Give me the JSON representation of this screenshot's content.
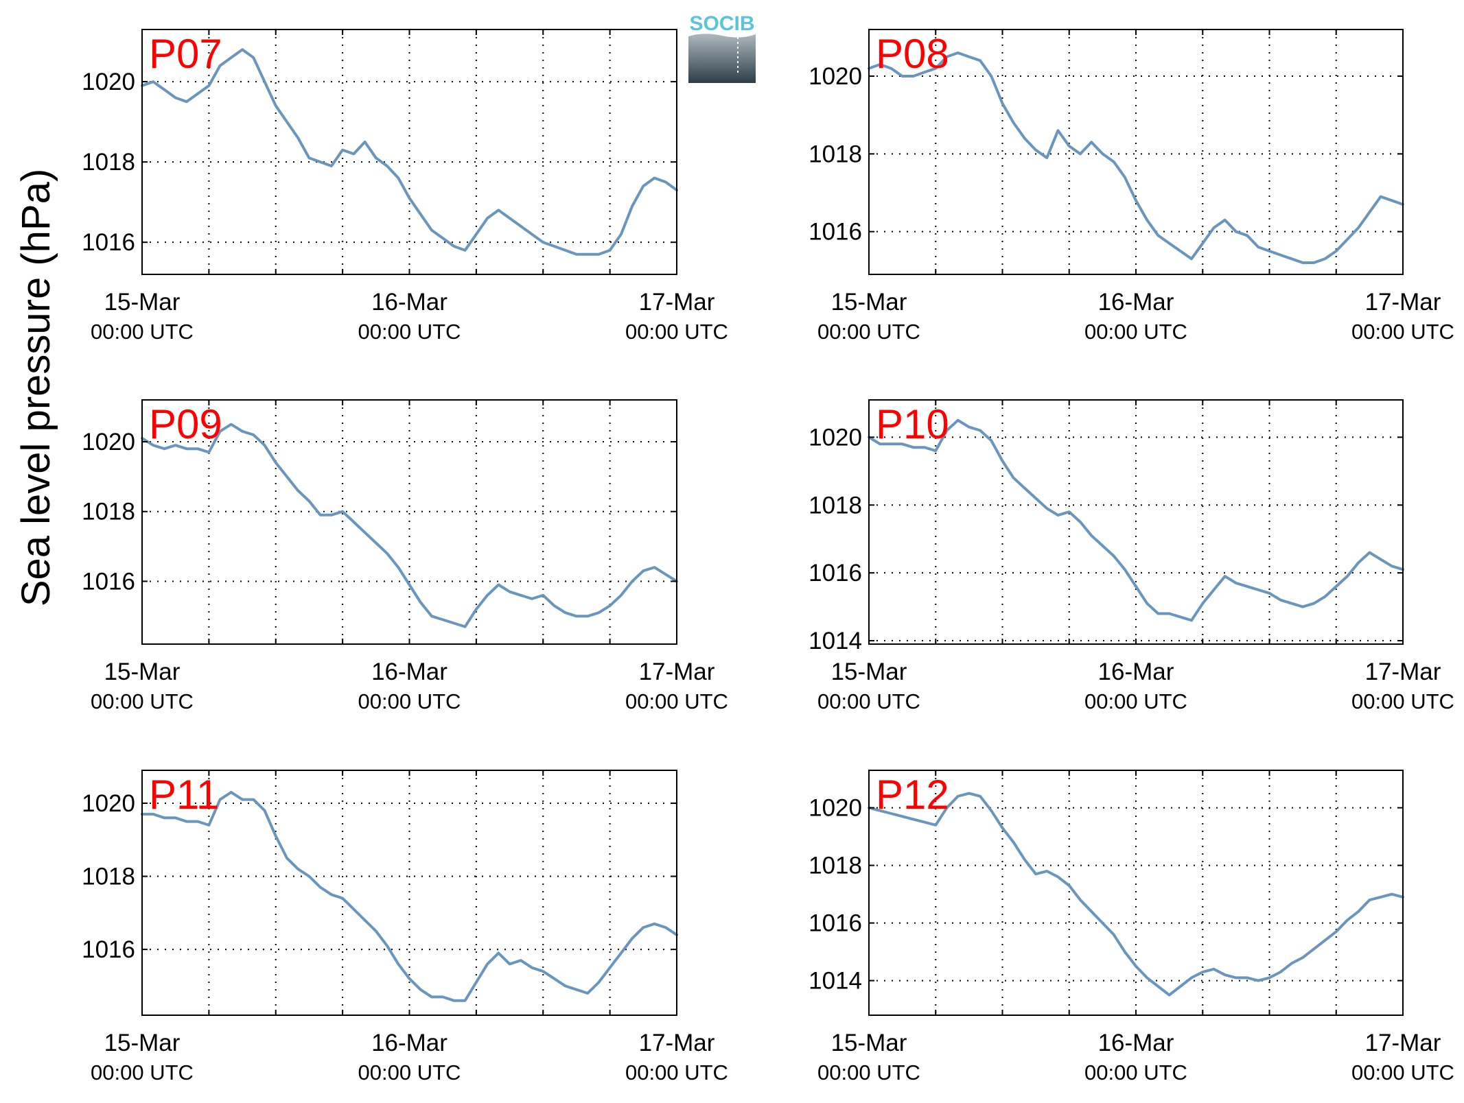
{
  "figure": {
    "ylabel": "Sea level pressure (hPa)",
    "logo_text": "SOCIB"
  },
  "colors": {
    "line": "#6a96bd",
    "title": "#ff0000",
    "axis": "#000000",
    "grid": "#000000",
    "logo_text": "#5bc4d6",
    "logo_top": "#aeb9bf",
    "logo_bottom": "#2d3e48"
  },
  "chart_data": [
    {
      "type": "line",
      "title": "P07",
      "ylabel": "Sea level pressure (hPa)",
      "xlim": [
        0,
        48
      ],
      "ylim": [
        1015.2,
        1021.3
      ],
      "yticks": [
        1016,
        1018,
        1020
      ],
      "grid": true,
      "x": [
        0,
        1,
        2,
        3,
        4,
        5,
        6,
        7,
        8,
        9,
        10,
        11,
        12,
        13,
        14,
        15,
        16,
        17,
        18,
        19,
        20,
        21,
        22,
        23,
        24,
        25,
        26,
        27,
        28,
        29,
        30,
        31,
        32,
        33,
        34,
        35,
        36,
        37,
        38,
        39,
        40,
        41,
        42,
        43,
        44,
        45,
        46,
        47,
        48
      ],
      "series": [
        {
          "values": [
            1019.9,
            1020.0,
            1019.8,
            1019.6,
            1019.5,
            1019.7,
            1019.9,
            1020.4,
            1020.6,
            1020.8,
            1020.6,
            1020.0,
            1019.4,
            1019.0,
            1018.6,
            1018.1,
            1018.0,
            1017.9,
            1018.3,
            1018.2,
            1018.5,
            1018.1,
            1017.9,
            1017.6,
            1017.1,
            1016.7,
            1016.3,
            1016.1,
            1015.9,
            1015.8,
            1016.2,
            1016.6,
            1016.8,
            1016.6,
            1016.4,
            1016.2,
            1016.0,
            1015.9,
            1015.8,
            1015.7,
            1015.7,
            1015.7,
            1015.8,
            1016.2,
            1016.9,
            1017.4,
            1017.6,
            1017.5,
            1017.3
          ]
        }
      ]
    },
    {
      "type": "line",
      "title": "P08",
      "ylabel": "Sea level pressure (hPa)",
      "xlim": [
        0,
        48
      ],
      "ylim": [
        1014.9,
        1021.2
      ],
      "yticks": [
        1016,
        1018,
        1020
      ],
      "grid": true,
      "x": [
        0,
        1,
        2,
        3,
        4,
        5,
        6,
        7,
        8,
        9,
        10,
        11,
        12,
        13,
        14,
        15,
        16,
        17,
        18,
        19,
        20,
        21,
        22,
        23,
        24,
        25,
        26,
        27,
        28,
        29,
        30,
        31,
        32,
        33,
        34,
        35,
        36,
        37,
        38,
        39,
        40,
        41,
        42,
        43,
        44,
        45,
        46,
        47,
        48
      ],
      "series": [
        {
          "values": [
            1020.2,
            1020.3,
            1020.2,
            1020.0,
            1020.0,
            1020.1,
            1020.2,
            1020.5,
            1020.6,
            1020.5,
            1020.4,
            1020.0,
            1019.3,
            1018.8,
            1018.4,
            1018.1,
            1017.9,
            1018.6,
            1018.2,
            1018.0,
            1018.3,
            1018.0,
            1017.8,
            1017.4,
            1016.8,
            1016.3,
            1015.9,
            1015.7,
            1015.5,
            1015.3,
            1015.7,
            1016.1,
            1016.3,
            1016.0,
            1015.9,
            1015.6,
            1015.5,
            1015.4,
            1015.3,
            1015.2,
            1015.2,
            1015.3,
            1015.5,
            1015.8,
            1016.1,
            1016.5,
            1016.9,
            1016.8,
            1016.7
          ]
        }
      ]
    },
    {
      "type": "line",
      "title": "P09",
      "ylabel": "Sea level pressure (hPa)",
      "xlim": [
        0,
        48
      ],
      "ylim": [
        1014.2,
        1021.2
      ],
      "yticks": [
        1016,
        1018,
        1020
      ],
      "grid": true,
      "x": [
        0,
        1,
        2,
        3,
        4,
        5,
        6,
        7,
        8,
        9,
        10,
        11,
        12,
        13,
        14,
        15,
        16,
        17,
        18,
        19,
        20,
        21,
        22,
        23,
        24,
        25,
        26,
        27,
        28,
        29,
        30,
        31,
        32,
        33,
        34,
        35,
        36,
        37,
        38,
        39,
        40,
        41,
        42,
        43,
        44,
        45,
        46,
        47,
        48
      ],
      "series": [
        {
          "values": [
            1020.1,
            1019.9,
            1019.8,
            1019.9,
            1019.8,
            1019.8,
            1019.7,
            1020.3,
            1020.5,
            1020.3,
            1020.2,
            1019.9,
            1019.4,
            1019.0,
            1018.6,
            1018.3,
            1017.9,
            1017.9,
            1018.0,
            1017.7,
            1017.4,
            1017.1,
            1016.8,
            1016.4,
            1015.9,
            1015.4,
            1015.0,
            1014.9,
            1014.8,
            1014.7,
            1015.2,
            1015.6,
            1015.9,
            1015.7,
            1015.6,
            1015.5,
            1015.6,
            1015.3,
            1015.1,
            1015.0,
            1015.0,
            1015.1,
            1015.3,
            1015.6,
            1016.0,
            1016.3,
            1016.4,
            1016.2,
            1016.0
          ]
        }
      ]
    },
    {
      "type": "line",
      "title": "P10",
      "ylabel": "Sea level pressure (hPa)",
      "xlim": [
        0,
        48
      ],
      "ylim": [
        1013.9,
        1021.1
      ],
      "yticks": [
        1014,
        1016,
        1018,
        1020
      ],
      "grid": true,
      "x": [
        0,
        1,
        2,
        3,
        4,
        5,
        6,
        7,
        8,
        9,
        10,
        11,
        12,
        13,
        14,
        15,
        16,
        17,
        18,
        19,
        20,
        21,
        22,
        23,
        24,
        25,
        26,
        27,
        28,
        29,
        30,
        31,
        32,
        33,
        34,
        35,
        36,
        37,
        38,
        39,
        40,
        41,
        42,
        43,
        44,
        45,
        46,
        47,
        48
      ],
      "series": [
        {
          "values": [
            1020.0,
            1019.8,
            1019.8,
            1019.8,
            1019.7,
            1019.7,
            1019.6,
            1020.2,
            1020.5,
            1020.3,
            1020.2,
            1019.9,
            1019.3,
            1018.8,
            1018.5,
            1018.2,
            1017.9,
            1017.7,
            1017.8,
            1017.5,
            1017.1,
            1016.8,
            1016.5,
            1016.1,
            1015.6,
            1015.1,
            1014.8,
            1014.8,
            1014.7,
            1014.6,
            1015.1,
            1015.5,
            1015.9,
            1015.7,
            1015.6,
            1015.5,
            1015.4,
            1015.2,
            1015.1,
            1015.0,
            1015.1,
            1015.3,
            1015.6,
            1015.9,
            1016.3,
            1016.6,
            1016.4,
            1016.2,
            1016.1
          ]
        }
      ]
    },
    {
      "type": "line",
      "title": "P11",
      "ylabel": "Sea level pressure (hPa)",
      "xlim": [
        0,
        48
      ],
      "ylim": [
        1014.2,
        1020.9
      ],
      "yticks": [
        1016,
        1018,
        1020
      ],
      "grid": true,
      "x": [
        0,
        1,
        2,
        3,
        4,
        5,
        6,
        7,
        8,
        9,
        10,
        11,
        12,
        13,
        14,
        15,
        16,
        17,
        18,
        19,
        20,
        21,
        22,
        23,
        24,
        25,
        26,
        27,
        28,
        29,
        30,
        31,
        32,
        33,
        34,
        35,
        36,
        37,
        38,
        39,
        40,
        41,
        42,
        43,
        44,
        45,
        46,
        47,
        48
      ],
      "series": [
        {
          "values": [
            1019.7,
            1019.7,
            1019.6,
            1019.6,
            1019.5,
            1019.5,
            1019.4,
            1020.1,
            1020.3,
            1020.1,
            1020.1,
            1019.8,
            1019.1,
            1018.5,
            1018.2,
            1018.0,
            1017.7,
            1017.5,
            1017.4,
            1017.1,
            1016.8,
            1016.5,
            1016.1,
            1015.6,
            1015.2,
            1014.9,
            1014.7,
            1014.7,
            1014.6,
            1014.6,
            1015.1,
            1015.6,
            1015.9,
            1015.6,
            1015.7,
            1015.5,
            1015.4,
            1015.2,
            1015.0,
            1014.9,
            1014.8,
            1015.1,
            1015.5,
            1015.9,
            1016.3,
            1016.6,
            1016.7,
            1016.6,
            1016.4
          ]
        }
      ]
    },
    {
      "type": "line",
      "title": "P12",
      "ylabel": "Sea level pressure (hPa)",
      "xlim": [
        0,
        48
      ],
      "ylim": [
        1012.8,
        1021.3
      ],
      "yticks": [
        1014,
        1016,
        1018,
        1020
      ],
      "grid": true,
      "x": [
        0,
        1,
        2,
        3,
        4,
        5,
        6,
        7,
        8,
        9,
        10,
        11,
        12,
        13,
        14,
        15,
        16,
        17,
        18,
        19,
        20,
        21,
        22,
        23,
        24,
        25,
        26,
        27,
        28,
        29,
        30,
        31,
        32,
        33,
        34,
        35,
        36,
        37,
        38,
        39,
        40,
        41,
        42,
        43,
        44,
        45,
        46,
        47,
        48
      ],
      "series": [
        {
          "values": [
            1020.0,
            1019.9,
            1019.8,
            1019.7,
            1019.6,
            1019.5,
            1019.4,
            1020.0,
            1020.4,
            1020.5,
            1020.4,
            1019.9,
            1019.3,
            1018.8,
            1018.2,
            1017.7,
            1017.8,
            1017.6,
            1017.3,
            1016.8,
            1016.4,
            1016.0,
            1015.6,
            1015.0,
            1014.5,
            1014.1,
            1013.8,
            1013.5,
            1013.8,
            1014.1,
            1014.3,
            1014.4,
            1014.2,
            1014.1,
            1014.1,
            1014.0,
            1014.1,
            1014.3,
            1014.6,
            1014.8,
            1015.1,
            1015.4,
            1015.7,
            1016.1,
            1016.4,
            1016.8,
            1016.9,
            1017.0,
            1016.9
          ]
        }
      ]
    }
  ],
  "xaxis": {
    "ticks": [
      {
        "x": 0,
        "date": "15-Mar",
        "time": "00:00 UTC"
      },
      {
        "x": 24,
        "date": "16-Mar",
        "time": "00:00 UTC"
      },
      {
        "x": 48,
        "date": "17-Mar",
        "time": "00:00 UTC"
      }
    ],
    "minor_ticks": [
      6,
      12,
      18,
      30,
      36,
      42
    ]
  }
}
